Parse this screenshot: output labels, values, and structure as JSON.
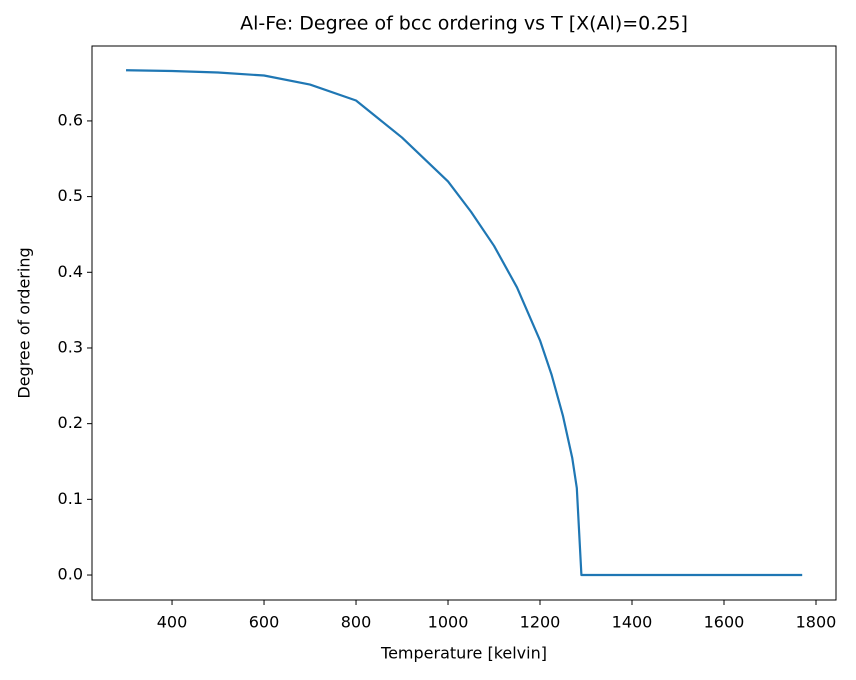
{
  "chart_data": {
    "type": "line",
    "title": "Al-Fe: Degree of bcc ordering vs T [X(Al)=0.25]",
    "x_label": "Temperature [kelvin]",
    "y_label": "Degree of ordering",
    "x": [
      300,
      400,
      500,
      600,
      700,
      800,
      900,
      1000,
      1050,
      1100,
      1150,
      1200,
      1225,
      1250,
      1270,
      1280,
      1290,
      1400,
      1600,
      1770
    ],
    "series": [
      {
        "color": "#1f77b4",
        "values": [
          0.667,
          0.666,
          0.664,
          0.66,
          0.648,
          0.627,
          0.578,
          0.52,
          0.48,
          0.435,
          0.38,
          0.31,
          0.265,
          0.21,
          0.155,
          0.115,
          0,
          0,
          0,
          0
        ]
      }
    ],
    "xlim": [
      226,
      1843.5
    ],
    "ylim": [
      -0.033,
      0.699
    ],
    "xticks": [
      400,
      600,
      800,
      1000,
      1200,
      1400,
      1600,
      1800
    ],
    "yticks": [
      {
        "value": 0,
        "label": "0.0"
      },
      0.1,
      0.2,
      0.3,
      0.4,
      0.5,
      0.6
    ],
    "grid": false
  }
}
